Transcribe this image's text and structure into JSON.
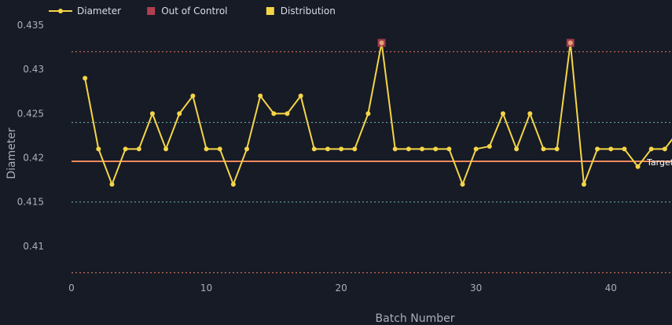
{
  "chart_data": {
    "type": "line",
    "xlabel": "Batch Number",
    "ylabel": "Diameter",
    "xlim": [
      0,
      45
    ],
    "ylim": [
      0.4067,
      0.435
    ],
    "x_ticks": [
      0,
      10,
      20,
      30,
      40
    ],
    "y_ticks": [
      0.41,
      0.415,
      0.42,
      0.425,
      0.43,
      0.435
    ],
    "y_tick_labels": [
      "0.41",
      "0.415",
      "0.42",
      "0.425",
      "0.43",
      "0.435"
    ],
    "grid": false,
    "legend_position": "top-left",
    "legend": [
      {
        "key": "diameter",
        "label": "Diameter",
        "color": "#f5d547",
        "symbol": "line-marker"
      },
      {
        "key": "ooc",
        "label": "Out of Control",
        "color": "#b0404f",
        "symbol": "square"
      },
      {
        "key": "dist",
        "label": "Distribution",
        "color": "#f5d547",
        "symbol": "square"
      }
    ],
    "series": [
      {
        "name": "Diameter",
        "color": "#f5d547",
        "x": [
          1,
          2,
          3,
          4,
          5,
          6,
          7,
          8,
          9,
          10,
          11,
          12,
          13,
          14,
          15,
          16,
          17,
          18,
          19,
          20,
          21,
          22,
          23,
          24,
          25,
          26,
          27,
          28,
          29,
          30,
          31,
          32,
          33,
          34,
          35,
          36,
          37,
          38,
          39,
          40,
          41,
          42,
          43,
          44,
          45
        ],
        "y": [
          0.429,
          0.421,
          0.417,
          0.421,
          0.421,
          0.425,
          0.421,
          0.425,
          0.427,
          0.421,
          0.421,
          0.417,
          0.421,
          0.427,
          0.425,
          0.425,
          0.427,
          0.421,
          0.421,
          0.421,
          0.421,
          0.425,
          0.433,
          0.421,
          0.421,
          0.421,
          0.421,
          0.421,
          0.417,
          0.421,
          0.4213,
          0.425,
          0.421,
          0.425,
          0.421,
          0.421,
          0.433,
          0.417,
          0.421,
          0.421,
          0.421,
          0.419,
          0.421,
          0.421,
          0.423
        ]
      }
    ],
    "out_of_control": {
      "x": [
        23,
        37
      ],
      "y": [
        0.433,
        0.433
      ],
      "color": "#b0404f"
    },
    "reference_lines": [
      {
        "key": "ucl",
        "value": 0.432,
        "color": "#e07a5f",
        "style": "dotted"
      },
      {
        "key": "uwl",
        "value": 0.424,
        "color": "#6fb3b8",
        "style": "dotted"
      },
      {
        "key": "target",
        "value": 0.4196,
        "color": "#f08a5d",
        "style": "solid",
        "label": "Target"
      },
      {
        "key": "lwl",
        "value": 0.415,
        "color": "#6fb3b8",
        "style": "dotted"
      },
      {
        "key": "lcl",
        "value": 0.407,
        "color": "#e07a5f",
        "style": "dotted"
      }
    ]
  }
}
